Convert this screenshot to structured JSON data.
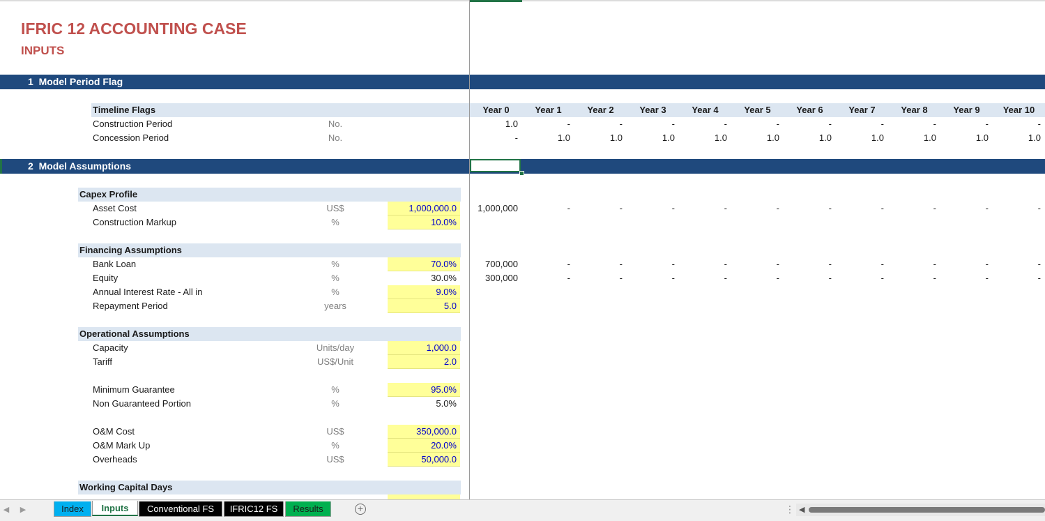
{
  "header": {
    "title": "IFRIC 12 ACCOUNTING CASE",
    "subtitle": "INPUTS"
  },
  "sections": [
    {
      "num": "1",
      "title": "Model Period Flag"
    },
    {
      "num": "2",
      "title": "Model Assumptions"
    }
  ],
  "timeline": {
    "group": "Timeline Flags",
    "years": [
      "Year 0",
      "Year 1",
      "Year 2",
      "Year 3",
      "Year 4",
      "Year 5",
      "Year 6",
      "Year 7",
      "Year 8",
      "Year 9",
      "Year 10"
    ],
    "rows": [
      {
        "label": "Construction Period",
        "unit": "No.",
        "values": [
          "1.0",
          "-",
          "-",
          "-",
          "-",
          "-",
          "-",
          "-",
          "-",
          "-",
          "-"
        ]
      },
      {
        "label": "Concession Period",
        "unit": "No.",
        "values": [
          "-",
          "1.0",
          "1.0",
          "1.0",
          "1.0",
          "1.0",
          "1.0",
          "1.0",
          "1.0",
          "1.0",
          "1.0"
        ]
      }
    ]
  },
  "capex": {
    "group": "Capex Profile",
    "rows": [
      {
        "label": "Asset Cost",
        "unit": "US$",
        "value": "1,000,000.0",
        "input": true,
        "series": [
          "1,000,000",
          "-",
          "-",
          "-",
          "-",
          "-",
          "-",
          "-",
          "-",
          "-",
          "-"
        ]
      },
      {
        "label": "Construction Markup",
        "unit": "%",
        "value": "10.0%",
        "input": true
      }
    ]
  },
  "financing": {
    "group": "Financing Assumptions",
    "rows": [
      {
        "label": "Bank Loan",
        "unit": "%",
        "value": "70.0%",
        "input": true,
        "series": [
          "700,000",
          "-",
          "-",
          "-",
          "-",
          "-",
          "-",
          "-",
          "-",
          "-",
          "-"
        ]
      },
      {
        "label": "Equity",
        "unit": "%",
        "value": "30.0%",
        "input": false,
        "series": [
          "300,000",
          "-",
          "-",
          "-",
          "-",
          "-",
          "-",
          "-",
          "-",
          "-",
          "-"
        ]
      },
      {
        "label": "Annual Interest Rate - All in",
        "unit": "%",
        "value": "9.0%",
        "input": true
      },
      {
        "label": "Repayment Period",
        "unit": "years",
        "value": "5.0",
        "input": true
      }
    ]
  },
  "operational": {
    "group": "Operational Assumptions",
    "rows": [
      {
        "label": "Capacity",
        "unit": "Units/day",
        "value": "1,000.0",
        "input": true
      },
      {
        "label": "Tariff",
        "unit": "US$/Unit",
        "value": "2.0",
        "input": true
      },
      {
        "label": "Minimum Guarantee",
        "unit": "%",
        "value": "95.0%",
        "input": true
      },
      {
        "label": "Non Guaranteed Portion",
        "unit": "%",
        "value": "5.0%",
        "input": false
      },
      {
        "label": "O&M Cost",
        "unit": "US$",
        "value": "350,000.0",
        "input": true
      },
      {
        "label": "O&M Mark Up",
        "unit": "%",
        "value": "20.0%",
        "input": true
      },
      {
        "label": "Overheads",
        "unit": "US$",
        "value": "50,000.0",
        "input": true
      }
    ]
  },
  "working_capital": {
    "group": "Working Capital Days"
  },
  "tabs": [
    {
      "label": "Index",
      "bg": "#00b0f0",
      "fg": "#1a1a1a"
    },
    {
      "label": "Inputs",
      "bg": "#ffffff",
      "fg": "#217346",
      "active": true
    },
    {
      "label": "Conventional FS",
      "bg": "#000000",
      "fg": "#ffffff"
    },
    {
      "label": "IFRIC12 FS",
      "bg": "#000000",
      "fg": "#ffffff"
    },
    {
      "label": "Results",
      "bg": "#00b050",
      "fg": "#1a1a1a"
    }
  ],
  "icons": {
    "add_sheet": "+",
    "scroll_left": "◀",
    "nav_prev": "◀",
    "nav_next": "▶",
    "more": "⋮"
  },
  "colors": {
    "title": "#c0504d",
    "band": "#1f497d",
    "group_bg": "#dce6f1",
    "input_bg": "#ffff99",
    "input_fg": "#0000cc",
    "excel_green": "#217346"
  }
}
